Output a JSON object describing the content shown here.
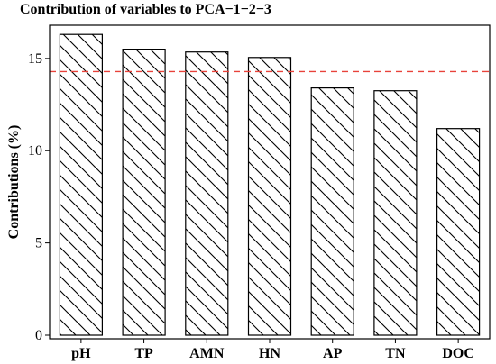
{
  "chart_data": {
    "type": "bar",
    "title": "Contribution of variables to PCA−1−2−3",
    "xlabel": "",
    "ylabel": "Contributions (%)",
    "categories": [
      "pH",
      "TP",
      "AMN",
      "HN",
      "AP",
      "TN",
      "DOC"
    ],
    "values": [
      16.3,
      15.5,
      15.35,
      15.05,
      13.4,
      13.25,
      11.2
    ],
    "ylim": [
      0,
      16.8
    ],
    "yticks": [
      0,
      5,
      10,
      15
    ],
    "reference_line": {
      "value": 14.29,
      "color": "#e8423a",
      "style": "dashed"
    },
    "bar_fill": "hatched",
    "bar_edge_color": "#000000",
    "grid": false,
    "legend": "none"
  }
}
